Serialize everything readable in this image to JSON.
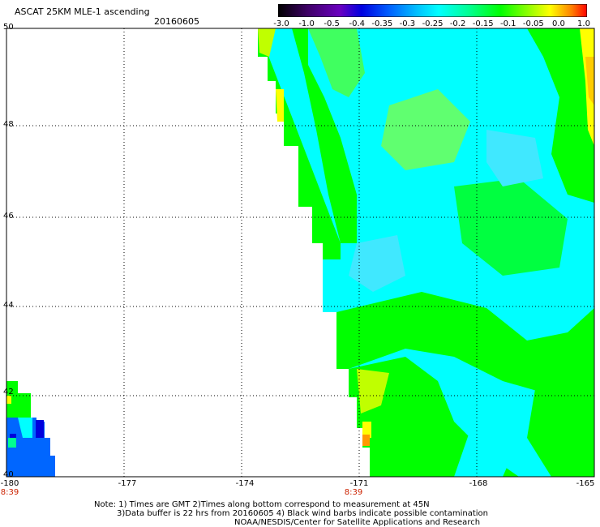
{
  "header": {
    "title": "ASCAT 25KM MLE-1 ascending",
    "date": "20160605"
  },
  "colorbar": {
    "labels": [
      "-3.0",
      "-1.0",
      "-0.5",
      "-0.4",
      "-0.35",
      "-0.3",
      "-0.25",
      "-0.2",
      "-0.15",
      "-0.1",
      "-0.05",
      "0.0",
      "1.0"
    ],
    "colors": [
      "#000000",
      "#3a0070",
      "#7000c0",
      "#0000e0",
      "#0050ff",
      "#00a0ff",
      "#00ffff",
      "#00ff90",
      "#00ff00",
      "#80ff00",
      "#ffff00",
      "#ff8000",
      "#ff0000"
    ]
  },
  "map": {
    "lat_labels": [
      "50",
      "48",
      "46",
      "44",
      "42",
      "40"
    ],
    "lon_labels": [
      "-180",
      "-177",
      "-174",
      "-171",
      "-168",
      "-165"
    ],
    "time_labels": [
      "8:39",
      "8:39"
    ],
    "grid": "dotted",
    "swath_colors": {
      "cyan": "#00ffff",
      "green": "#00ff00",
      "lightgreen": "#80ff00",
      "seafoam": "#40ffb0",
      "yellow": "#ffff00",
      "orange": "#ff9900",
      "blue": "#0066ff",
      "darkblue": "#0000dd"
    }
  },
  "notes": {
    "line1": "Note: 1) Times are GMT 2)Times along bottom correspond to measurement at 45N",
    "line2": "3)Data buffer is 22 hrs from 20160605 4) Black wind barbs indicate possible contamination",
    "line3": "NOAA/NESDIS/Center for Satellite Applications and Research"
  }
}
